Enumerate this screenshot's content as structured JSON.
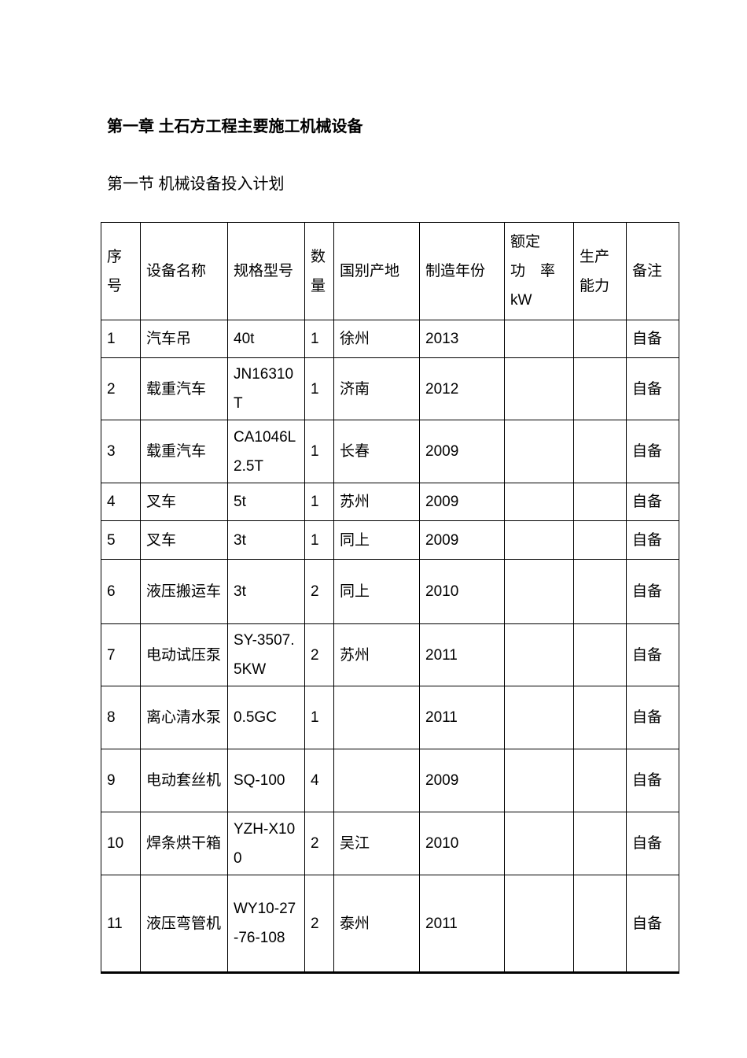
{
  "page": {
    "chapter_title": "第一章 土石方工程主要施工机械设备",
    "section_title": "第一节 机械设备投入计划"
  },
  "table": {
    "headers": [
      {
        "key": "index",
        "label": "序号"
      },
      {
        "key": "name",
        "label": "设备名称"
      },
      {
        "key": "model",
        "label": "规格型号"
      },
      {
        "key": "qty",
        "label": "数量"
      },
      {
        "key": "origin",
        "label": "国别产地"
      },
      {
        "key": "year",
        "label": "制造年份"
      },
      {
        "key": "power",
        "label": "额定\n功　率\nkW"
      },
      {
        "key": "capacity",
        "label": "生产能力"
      },
      {
        "key": "note",
        "label": "备注"
      }
    ],
    "rows": [
      {
        "index": "1",
        "name": "汽车吊",
        "model": "40t",
        "qty": "1",
        "origin": "徐州",
        "year": "2013",
        "power": "",
        "capacity": "",
        "note": "自备"
      },
      {
        "index": "2",
        "name": "载重汽车",
        "model": "JN16310T",
        "qty": "1",
        "origin": "济南",
        "year": "2012",
        "power": "",
        "capacity": "",
        "note": "自备"
      },
      {
        "index": "3",
        "name": "载重汽车",
        "model": "CA1046L2.5T",
        "qty": "1",
        "origin": "长春",
        "year": "2009",
        "power": "",
        "capacity": "",
        "note": "自备"
      },
      {
        "index": "4",
        "name": "叉车",
        "model": "5t",
        "qty": "1",
        "origin": "苏州",
        "year": "2009",
        "power": "",
        "capacity": "",
        "note": "自备"
      },
      {
        "index": "5",
        "name": "叉车",
        "model": "3t",
        "qty": "1",
        "origin": "同上",
        "year": "2009",
        "power": "",
        "capacity": "",
        "note": "自备"
      },
      {
        "index": "6",
        "name": "液压搬运车",
        "model": "3t",
        "qty": "2",
        "origin": "同上",
        "year": "2010",
        "power": "",
        "capacity": "",
        "note": "自备"
      },
      {
        "index": "7",
        "name": "电动试压泵",
        "model": "SY-3507.5KW",
        "qty": "2",
        "origin": "苏州",
        "year": "2011",
        "power": "",
        "capacity": "",
        "note": "自备"
      },
      {
        "index": "8",
        "name": "离心清水泵",
        "model": "0.5GC",
        "qty": "1",
        "origin": "",
        "year": "2011",
        "power": "",
        "capacity": "",
        "note": "自备"
      },
      {
        "index": "9",
        "name": "电动套丝机",
        "model": "SQ-100",
        "qty": "4",
        "origin": "",
        "year": "2009",
        "power": "",
        "capacity": "",
        "note": "自备"
      },
      {
        "index": "10",
        "name": "焊条烘干箱",
        "model": "YZH-X100",
        "qty": "2",
        "origin": "吴江",
        "year": "2010",
        "power": "",
        "capacity": "",
        "note": "自备"
      },
      {
        "index": "11",
        "name": "液压弯管机",
        "model": "WY10-27-76-108",
        "qty": "2",
        "origin": "泰州",
        "year": "2011",
        "power": "",
        "capacity": "",
        "note": "自备"
      }
    ]
  }
}
